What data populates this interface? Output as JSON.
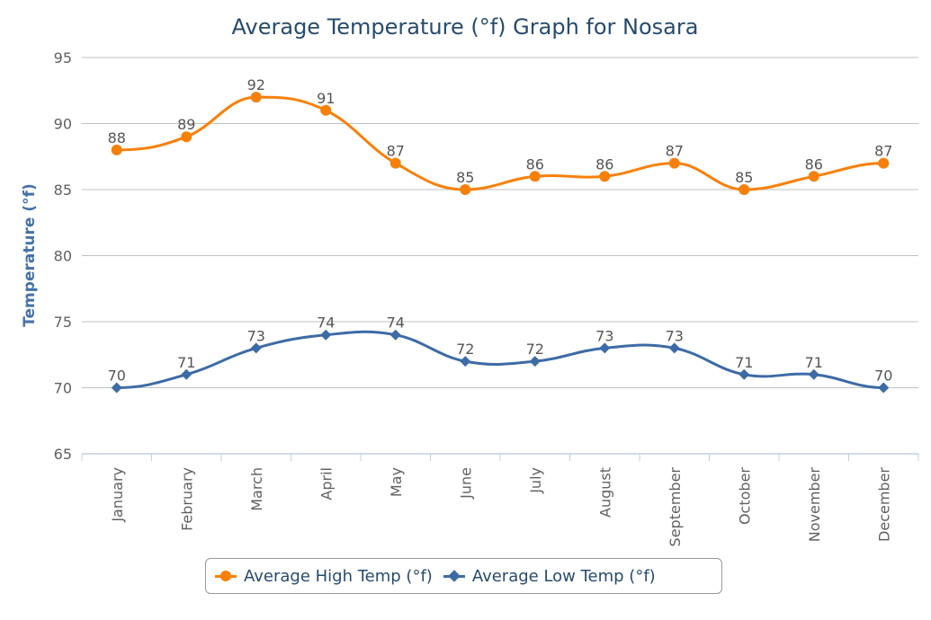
{
  "chart_data": {
    "type": "line",
    "title": "Average Temperature (°f) Graph for Nosara",
    "xlabel": "",
    "ylabel": "Temperature (°f)",
    "ylim": [
      65,
      95
    ],
    "yticks": [
      65,
      70,
      75,
      80,
      85,
      90,
      95
    ],
    "grid": true,
    "legend": "bottom",
    "categories": [
      "January",
      "February",
      "March",
      "April",
      "May",
      "June",
      "July",
      "August",
      "September",
      "October",
      "November",
      "December"
    ],
    "series": [
      {
        "name": "Average High Temp (°f)",
        "color": "#f7800a",
        "marker": "circle",
        "values": [
          88,
          89,
          92,
          91,
          87,
          85,
          86,
          86,
          87,
          85,
          86,
          87
        ]
      },
      {
        "name": "Average Low Temp (°f)",
        "color": "#3d6ba5",
        "marker": "diamond",
        "values": [
          70,
          71,
          73,
          74,
          74,
          72,
          72,
          73,
          73,
          71,
          71,
          70
        ]
      }
    ]
  }
}
